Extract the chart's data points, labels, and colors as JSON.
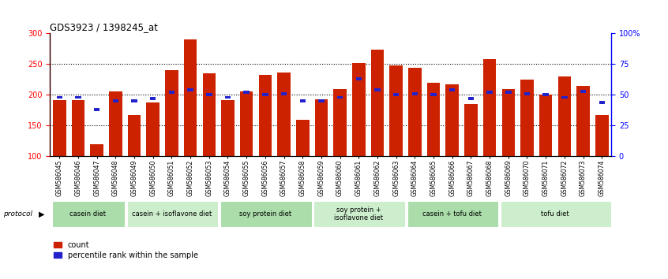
{
  "title": "GDS3923 / 1398245_at",
  "samples": [
    "GSM586045",
    "GSM586046",
    "GSM586047",
    "GSM586048",
    "GSM586049",
    "GSM586050",
    "GSM586051",
    "GSM586052",
    "GSM586053",
    "GSM586054",
    "GSM586055",
    "GSM586056",
    "GSM586057",
    "GSM586058",
    "GSM586059",
    "GSM586060",
    "GSM586061",
    "GSM586062",
    "GSM586063",
    "GSM586064",
    "GSM586065",
    "GSM586066",
    "GSM586067",
    "GSM586068",
    "GSM586069",
    "GSM586070",
    "GSM586071",
    "GSM586072",
    "GSM586073",
    "GSM586074"
  ],
  "count_values": [
    192,
    192,
    120,
    205,
    167,
    187,
    240,
    290,
    235,
    192,
    205,
    232,
    237,
    160,
    193,
    210,
    252,
    274,
    248,
    244,
    220,
    217,
    185,
    258,
    210,
    225,
    200,
    230,
    215,
    167
  ],
  "percentile_values": [
    48,
    48,
    38,
    45,
    45,
    47,
    52,
    54,
    50,
    48,
    52,
    50,
    51,
    45,
    45,
    48,
    63,
    54,
    50,
    51,
    50,
    54,
    47,
    52,
    52,
    51,
    50,
    48,
    53,
    44
  ],
  "protocols": [
    {
      "label": "casein diet",
      "start": 0,
      "end": 4,
      "color": "#aaddaa"
    },
    {
      "label": "casein + isoflavone diet",
      "start": 4,
      "end": 9,
      "color": "#cceecc"
    },
    {
      "label": "soy protein diet",
      "start": 9,
      "end": 14,
      "color": "#aaddaa"
    },
    {
      "label": "soy protein +\nisoflavone diet",
      "start": 14,
      "end": 19,
      "color": "#cceecc"
    },
    {
      "label": "casein + tofu diet",
      "start": 19,
      "end": 24,
      "color": "#aaddaa"
    },
    {
      "label": "tofu diet",
      "start": 24,
      "end": 30,
      "color": "#cceecc"
    }
  ],
  "bar_color_red": "#cc2200",
  "bar_color_blue": "#2222cc",
  "ylim_left": [
    100,
    300
  ],
  "ylim_right": [
    0,
    100
  ],
  "left_ticks": [
    100,
    150,
    200,
    250,
    300
  ],
  "grid_values": [
    150,
    200,
    250
  ],
  "right_ticks": [
    0,
    25,
    50,
    75,
    100
  ],
  "right_tick_labels": [
    "0",
    "25",
    "50",
    "75",
    "100%"
  ]
}
